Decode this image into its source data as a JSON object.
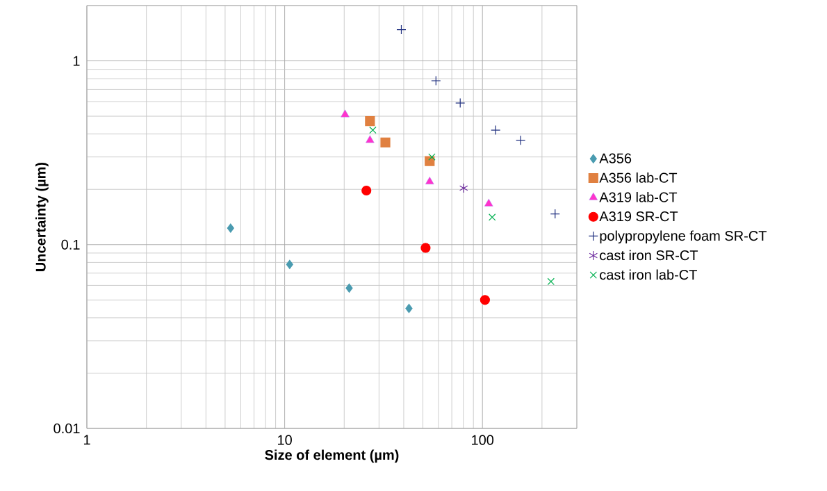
{
  "chart_data": {
    "type": "scatter",
    "xlabel": "Size of element (µm)",
    "ylabel": "Uncertainty  (µm)",
    "log": "xy",
    "grid": true,
    "legend": "right",
    "xlim": [
      1,
      300
    ],
    "ylim": [
      0.01,
      2
    ],
    "xticks": [
      1,
      10,
      100
    ],
    "yticks": [
      0.01,
      0.1,
      1
    ],
    "series": [
      {
        "name": "A356",
        "color": "#4a9bb0",
        "marker": "diamond",
        "x": [
          5.33,
          10.6,
          21.2,
          42.5
        ],
        "values": [
          0.123,
          0.078,
          0.058,
          0.045
        ]
      },
      {
        "name": "A356 lab-CT",
        "color": "#e08040",
        "marker": "square",
        "x": [
          27.0,
          32.3,
          54.1
        ],
        "values": [
          0.47,
          0.36,
          0.285
        ]
      },
      {
        "name": "A319 lab-CT",
        "color": "#ff33cc",
        "marker": "triangle",
        "x": [
          20.2,
          27.0,
          54.1,
          107.6
        ],
        "values": [
          0.51,
          0.37,
          0.22,
          0.167
        ]
      },
      {
        "name": "A319 SR-CT",
        "color": "#ff0000",
        "marker": "circle",
        "x": [
          25.9,
          51.6,
          103
        ],
        "values": [
          0.197,
          0.096,
          0.05
        ]
      },
      {
        "name": "polypropylene foam SR-CT",
        "color": "#1f2f7f",
        "marker": "plus",
        "x": [
          38.9,
          58.2,
          77.2,
          116.6,
          156,
          233
        ],
        "values": [
          1.48,
          0.78,
          0.59,
          0.42,
          0.37,
          0.147
        ]
      },
      {
        "name": "cast iron SR-CT",
        "color": "#7030a0",
        "marker": "cross",
        "x": [
          80.4
        ],
        "values": [
          0.203
        ]
      },
      {
        "name": "cast iron lab-CT",
        "color": "#00b050",
        "marker": "cross",
        "x": [
          27.9,
          55.5,
          112,
          222
        ],
        "values": [
          0.42,
          0.3,
          0.141,
          0.063
        ]
      }
    ]
  }
}
